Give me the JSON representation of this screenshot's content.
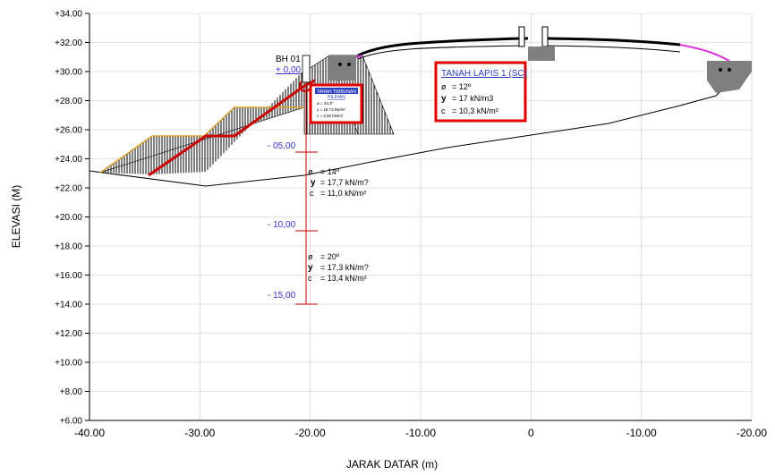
{
  "axes": {
    "ylabel": "ELEVASI (M)",
    "xlabel": "JARAK DATAR (m)",
    "y_ticks": [
      "+34.00",
      "+32.00",
      "+30.00",
      "+28.00",
      "+26.00",
      "+24.00",
      "+22.00",
      "+20.00",
      "+18.00",
      "+16.00",
      "+14.00",
      "+12.00",
      "+10.00",
      "+8.00",
      "+6.00"
    ],
    "x_ticks": [
      "-40.00",
      "-30.00",
      "-20.00",
      "-10.00",
      "0",
      "-10.00",
      "-20.00"
    ],
    "y_range": [
      6,
      34
    ],
    "x_range": [
      -40,
      20
    ],
    "grid": true
  },
  "borehole": {
    "name": "BH 01",
    "top": "+ 0,00",
    "depths": [
      "- 05,00",
      "- 10,00",
      "- 15,00"
    ]
  },
  "soil_layers": [
    {
      "phi": "ø",
      "phi_val": "= 14º",
      "gamma": "y",
      "gamma_val": "= 17,7 kN/m?",
      "c": "c",
      "c_val": "= 11,0 kN/m²"
    },
    {
      "phi": "ø",
      "phi_val": "= 20º",
      "gamma": "y",
      "gamma_val": "= 17,3 kN/m?",
      "c": "c",
      "c_val": "= 13,4 kN/m²"
    }
  ],
  "fill_box": {
    "title": "TANAH TIMBUNAN",
    "subtitle": "PILIHAN",
    "lines": [
      "ø      = 34,3º",
      "y      = 18,73 kN/m²",
      "c      = 0,50 kN/m²"
    ]
  },
  "layer1_box": {
    "title": "TANAH LAPIS 1 (SC)",
    "phi": "ø",
    "phi_val": "= 12º",
    "gamma": "y",
    "gamma_val": "= 17 kN/m3",
    "c": "c",
    "c_val": "= 10,3 kN/m²"
  },
  "colors": {
    "grid": "#c8c8c8",
    "axis_text": "#000000",
    "depth_text": "#3333cc",
    "failure_line": "#cc0000",
    "highlight_box": "#e00000",
    "slope_top": "#d9a030",
    "pavement_edge": "#dd33dd",
    "structure": "#7f7f7f"
  }
}
